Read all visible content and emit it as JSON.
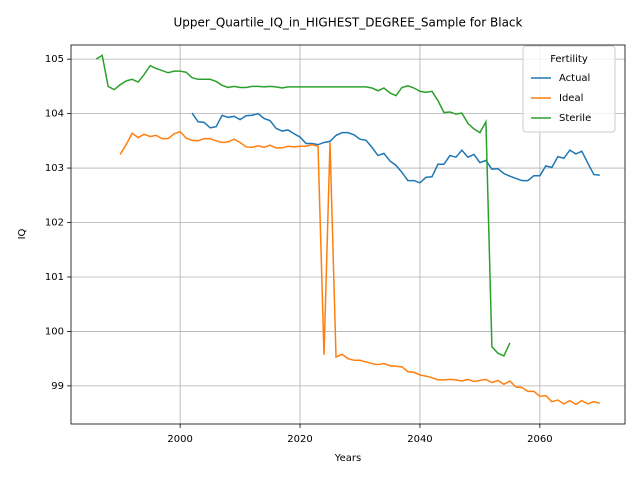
{
  "chart_data": {
    "type": "line",
    "title": "Upper_Quartile_IQ_in_HIGHEST_DEGREE_Sample for Black",
    "x_label": "Years",
    "y_label": "IQ",
    "x": [
      1986,
      1987,
      1988,
      1989,
      1990,
      1991,
      1992,
      1993,
      1994,
      1995,
      1996,
      1997,
      1998,
      1999,
      2000,
      2001,
      2002,
      2003,
      2004,
      2005,
      2006,
      2007,
      2008,
      2009,
      2010,
      2011,
      2012,
      2013,
      2014,
      2015,
      2016,
      2017,
      2018,
      2019,
      2020,
      2021,
      2022,
      2023,
      2024,
      2025,
      2026,
      2027,
      2028,
      2029,
      2030,
      2031,
      2032,
      2033,
      2034,
      2035,
      2036,
      2037,
      2038,
      2039,
      2040,
      2041,
      2042,
      2043,
      2044,
      2045,
      2046,
      2047,
      2048,
      2049,
      2050,
      2051,
      2052,
      2053,
      2054,
      2055,
      2056,
      2057,
      2058,
      2059,
      2060,
      2061,
      2062,
      2063,
      2064,
      2065,
      2066,
      2067,
      2068,
      2069,
      2070
    ],
    "series": [
      {
        "name": "Actual",
        "color": "#1f77b4",
        "values": [
          null,
          null,
          null,
          null,
          null,
          null,
          null,
          null,
          null,
          null,
          null,
          null,
          null,
          null,
          null,
          null,
          104.01,
          103.85,
          103.84,
          103.74,
          103.76,
          103.97,
          103.93,
          103.95,
          103.89,
          103.96,
          103.97,
          104.0,
          103.91,
          103.87,
          103.73,
          103.68,
          103.7,
          103.63,
          103.57,
          103.45,
          103.45,
          103.43,
          103.47,
          103.49,
          103.6,
          103.65,
          103.65,
          103.61,
          103.53,
          103.51,
          103.38,
          103.23,
          103.27,
          103.13,
          103.05,
          102.92,
          102.77,
          102.77,
          102.73,
          102.83,
          102.84,
          103.07,
          103.07,
          103.23,
          103.2,
          103.33,
          103.2,
          103.25,
          103.1,
          103.14,
          102.98,
          102.99,
          102.9,
          102.85,
          102.81,
          102.77,
          102.77,
          102.86,
          102.86,
          103.04,
          103.01,
          103.21,
          103.18,
          103.33,
          103.26,
          103.31,
          103.09,
          102.88,
          102.87
        ]
      },
      {
        "name": "Ideal",
        "color": "#ff7f0e",
        "values": [
          null,
          null,
          null,
          null,
          103.25,
          103.43,
          103.64,
          103.56,
          103.62,
          103.58,
          103.6,
          103.54,
          103.54,
          103.63,
          103.67,
          103.55,
          103.51,
          103.5,
          103.54,
          103.54,
          103.5,
          103.47,
          103.48,
          103.53,
          103.47,
          103.39,
          103.38,
          103.41,
          103.38,
          103.42,
          103.37,
          103.37,
          103.4,
          103.39,
          103.4,
          103.4,
          103.43,
          103.4,
          99.57,
          103.47,
          99.53,
          99.58,
          99.5,
          99.47,
          99.47,
          99.44,
          99.41,
          99.39,
          99.41,
          99.37,
          99.36,
          99.35,
          99.26,
          99.25,
          99.2,
          99.18,
          99.15,
          99.11,
          99.11,
          99.12,
          99.11,
          99.09,
          99.12,
          99.08,
          99.1,
          99.12,
          99.06,
          99.1,
          99.03,
          99.09,
          98.98,
          98.97,
          98.9,
          98.9,
          98.81,
          98.82,
          98.71,
          98.74,
          98.67,
          98.73,
          98.66,
          98.73,
          98.67,
          98.71,
          98.68
        ]
      },
      {
        "name": "Sterile",
        "color": "#2ca02c",
        "values": [
          105.0,
          105.07,
          104.5,
          104.44,
          104.53,
          104.6,
          104.63,
          104.58,
          104.72,
          104.88,
          104.83,
          104.79,
          104.75,
          104.78,
          104.78,
          104.76,
          104.66,
          104.63,
          104.63,
          104.63,
          104.59,
          104.52,
          104.48,
          104.5,
          104.48,
          104.48,
          104.5,
          104.5,
          104.49,
          104.5,
          104.49,
          104.47,
          104.49,
          104.49,
          104.49,
          104.49,
          104.49,
          104.49,
          104.49,
          104.49,
          104.49,
          104.49,
          104.49,
          104.49,
          104.49,
          104.49,
          104.47,
          104.42,
          104.47,
          104.38,
          104.33,
          104.48,
          104.51,
          104.47,
          104.41,
          104.39,
          104.41,
          104.24,
          104.02,
          104.03,
          103.99,
          104.01,
          103.82,
          103.72,
          103.65,
          103.85,
          99.72,
          99.6,
          99.55,
          99.79,
          null,
          null,
          null,
          null,
          null,
          null,
          null,
          null,
          null,
          null,
          null,
          null,
          null,
          null,
          null
        ]
      }
    ],
    "xlim": [
      1981.8,
      2074.2
    ],
    "ylim": [
      98.3,
      105.26
    ],
    "xticks": [
      2000,
      2020,
      2040,
      2060
    ],
    "yticks": [
      99,
      100,
      101,
      102,
      103,
      104,
      105
    ],
    "grid": true,
    "legend_title": "Fertility",
    "legend_position": "upper right"
  }
}
